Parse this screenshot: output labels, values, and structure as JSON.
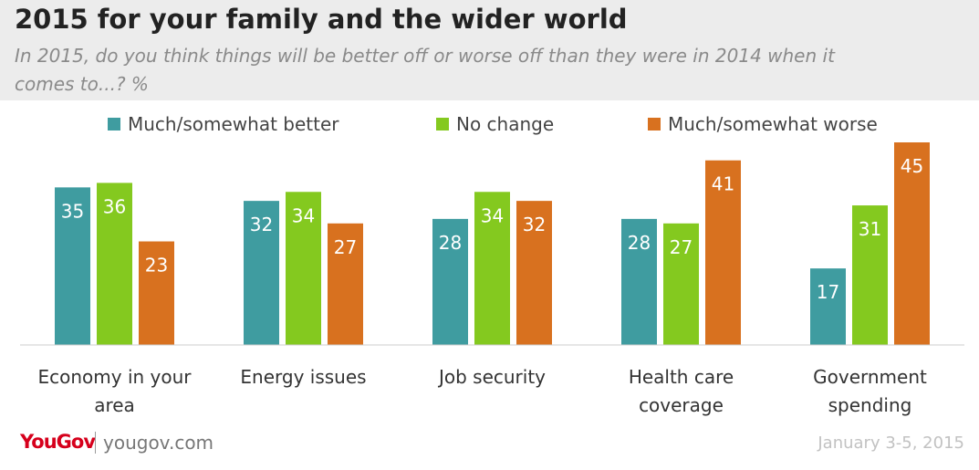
{
  "chart_data": {
    "type": "bar",
    "title": "2015 for your family and the wider world",
    "subtitle": "In 2015, do you think things will be better off or worse off than they were in 2014 when it comes to...? %",
    "categories": [
      "Economy in your area",
      "Energy issues",
      "Job security",
      "Health care coverage",
      "Government spending"
    ],
    "series": [
      {
        "name": "Much/somewhat better",
        "color": "#3f9ca0",
        "values": [
          35,
          32,
          28,
          28,
          17
        ]
      },
      {
        "name": "No change",
        "color": "#84c91f",
        "values": [
          36,
          34,
          34,
          27,
          31
        ]
      },
      {
        "name": "Much/somewhat worse",
        "color": "#d8711f",
        "values": [
          23,
          27,
          32,
          41,
          45
        ]
      }
    ],
    "ylim": [
      0,
      45
    ],
    "brand": "YouGov",
    "site": "yougov.com",
    "date": "January 3-5, 2015"
  }
}
